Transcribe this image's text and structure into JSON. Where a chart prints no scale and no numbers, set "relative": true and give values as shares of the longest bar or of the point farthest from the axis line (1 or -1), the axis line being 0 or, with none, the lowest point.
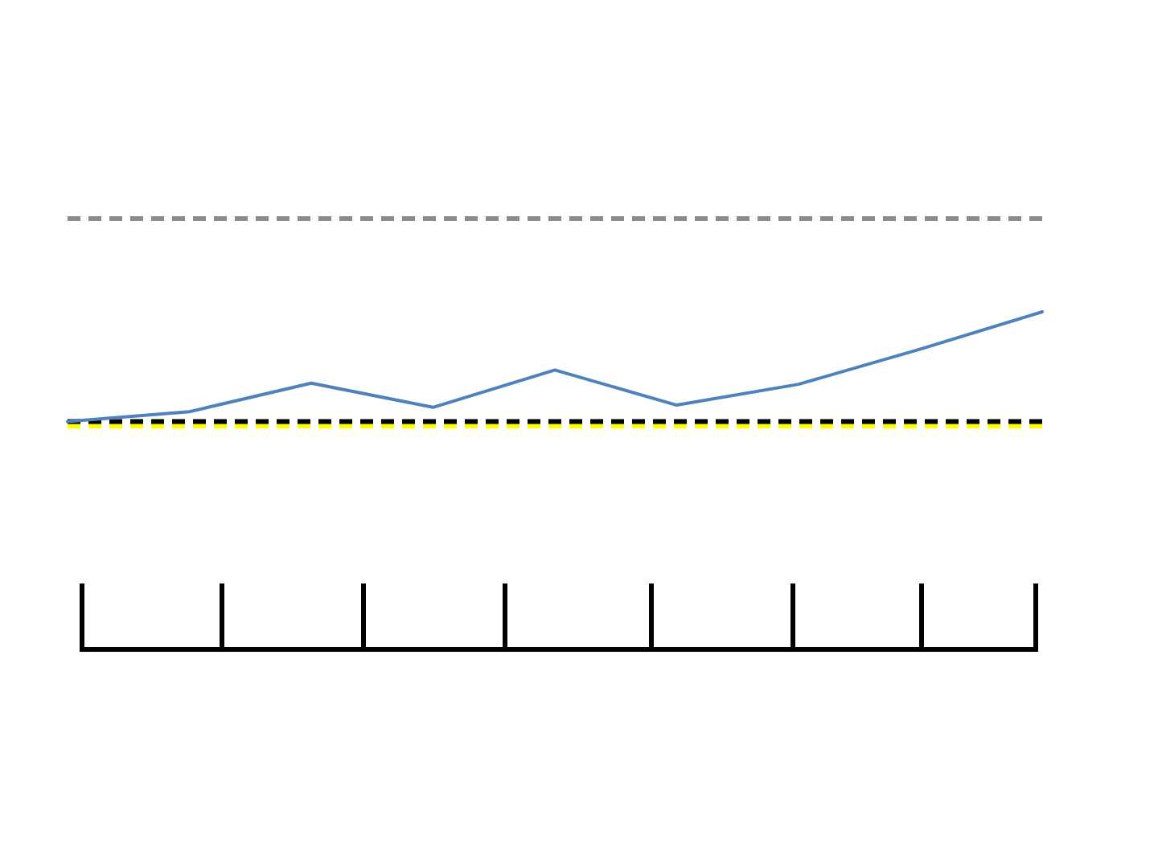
{
  "chart_data": {
    "type": "line",
    "relative": true,
    "categories": [
      null,
      null,
      null,
      null,
      null,
      null,
      null,
      null,
      null
    ],
    "series": [
      {
        "color": "#4f81bd",
        "values": [
          0,
          0.09,
          0.35,
          0.13,
          0.47,
          0.15,
          0.34,
          0.66,
          1
        ]
      }
    ],
    "ref_lines": [
      {
        "axis": "y",
        "value": 1.85,
        "color": "#8c8c8c",
        "line_style": "dashed"
      },
      {
        "axis": "y",
        "value": -0.04,
        "color": "#ffff00",
        "line_style": "dashed"
      },
      {
        "axis": "y",
        "value": 0,
        "color": "#000000",
        "line_style": "dashed"
      }
    ],
    "grid": false,
    "legend": false,
    "tick_labels": false,
    "marker": "none"
  }
}
